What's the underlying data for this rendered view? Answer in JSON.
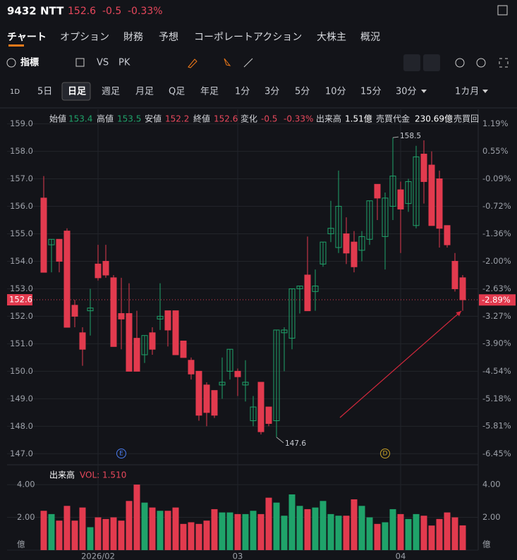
{
  "header": {
    "symbol": "9432 NTT",
    "price": "152.6",
    "change": "-0.5",
    "change_pct": "-0.33%"
  },
  "tabs": [
    "チャート",
    "オプション",
    "財務",
    "予想",
    "コーポレートアクション",
    "大株主",
    "概況"
  ],
  "toolbar": [
    "指標",
    "VS",
    "PK"
  ],
  "timeframes": [
    "1D",
    "5日",
    "日足",
    "週足",
    "月足",
    "Q足",
    "年足",
    "1分",
    "3分",
    "5分",
    "10分",
    "15分",
    "30分",
    "1カ月"
  ],
  "ohlc_info": [
    {
      "label": "始値",
      "value": "153.4"
    },
    {
      "label": "高値",
      "value": "153.5"
    },
    {
      "label": "安値",
      "value": "152.2"
    },
    {
      "label": "終値",
      "value": "152.6"
    },
    {
      "label": "変化",
      "value": "-0.5"
    },
    {
      "label": "",
      "value": "-0.33%"
    },
    {
      "label": "出来高",
      "value": "1.51億"
    },
    {
      "label": "売買代金",
      "value": "230.69億"
    },
    {
      "label": "売買回",
      "value": ""
    }
  ],
  "chart_data": [
    {
      "type": "candlestick",
      "up_color": "#1fa36a",
      "down_color": "#e23a4e",
      "grid": true,
      "categories": [
        null,
        null,
        null,
        null,
        null,
        null,
        null,
        "2026/02",
        null,
        null,
        null,
        null,
        null,
        null,
        null,
        null,
        null,
        null,
        null,
        null,
        null,
        null,
        null,
        null,
        null,
        "03",
        null,
        null,
        null,
        null,
        null,
        null,
        null,
        null,
        null,
        null,
        null,
        null,
        null,
        null,
        null,
        null,
        null,
        null,
        null,
        null,
        "04",
        null,
        null,
        null,
        null,
        null,
        null,
        null,
        null
      ],
      "open": [
        156.3,
        154.6,
        154.8,
        155.1,
        152.4,
        151.4,
        152.2,
        153.9,
        154.0,
        153.4,
        152.1,
        152.1,
        151.2,
        150.6,
        151.4,
        151.9,
        152.2,
        152.2,
        151.1,
        150.4,
        150.0,
        149.5,
        149.3,
        149.5,
        150.0,
        150.0,
        149.5,
        148.2,
        149.6,
        148.7,
        148.2,
        151.4,
        151.2,
        153.0,
        153.5,
        152.9,
        153.9,
        155.0,
        154.5,
        155.0,
        154.7,
        154.4,
        154.8,
        156.8,
        154.9,
        156.0,
        156.6,
        156.1,
        155.3,
        157.9,
        157.5,
        157.0,
        155.3,
        154.0,
        153.4
      ],
      "high": [
        157.1,
        154.8,
        154.8,
        155.2,
        152.6,
        151.6,
        153.0,
        154.6,
        154.6,
        153.5,
        153.4,
        153.2,
        152.2,
        151.3,
        151.6,
        153.2,
        152.2,
        152.2,
        151.1,
        150.5,
        150.0,
        149.6,
        149.3,
        150.5,
        150.8,
        150.1,
        150.4,
        149.1,
        149.6,
        148.7,
        151.5,
        151.6,
        153.0,
        153.1,
        154.9,
        153.7,
        154.7,
        156.2,
        157.3,
        155.6,
        155.1,
        155.1,
        156.2,
        156.8,
        156.5,
        158.5,
        156.9,
        157.0,
        158.2,
        158.4,
        158.0,
        157.3,
        155.3,
        154.3,
        153.5
      ],
      "low": [
        153.6,
        153.6,
        153.6,
        151.6,
        151.6,
        150.2,
        151.3,
        153.3,
        153.4,
        150.9,
        150.8,
        150.0,
        150.0,
        150.3,
        150.6,
        151.5,
        150.9,
        150.6,
        150.5,
        149.7,
        148.2,
        148.0,
        148.3,
        149.0,
        149.7,
        149.1,
        148.9,
        148.0,
        147.7,
        148.0,
        147.6,
        150.0,
        150.8,
        152.1,
        152.2,
        152.2,
        153.8,
        154.7,
        154.3,
        153.9,
        153.6,
        154.0,
        154.6,
        155.5,
        153.7,
        155.5,
        154.3,
        155.8,
        155.2,
        156.1,
        155.3,
        154.5,
        154.5,
        152.9,
        152.2
      ],
      "close": [
        153.6,
        154.8,
        154.0,
        151.6,
        152.0,
        150.8,
        152.3,
        153.4,
        153.5,
        150.9,
        151.9,
        150.0,
        150.0,
        151.3,
        150.8,
        152.0,
        151.5,
        150.6,
        150.5,
        149.9,
        148.4,
        148.5,
        148.4,
        149.6,
        150.8,
        149.8,
        149.6,
        148.7,
        147.8,
        148.1,
        151.5,
        151.5,
        153.0,
        153.1,
        152.2,
        153.1,
        154.7,
        155.2,
        156.0,
        154.3,
        153.8,
        154.9,
        156.2,
        156.3,
        156.3,
        157.1,
        155.9,
        156.9,
        157.8,
        156.9,
        155.3,
        155.2,
        154.6,
        153.0,
        152.6
      ],
      "ylim": [
        146.7,
        159.4
      ],
      "yticks": [
        {
          "value": 147,
          "label": "147.0"
        },
        {
          "value": 148,
          "label": "148.0"
        },
        {
          "value": 149,
          "label": "149.0"
        },
        {
          "value": 150,
          "label": "150.0"
        },
        {
          "value": 151,
          "label": "151.0"
        },
        {
          "value": 152,
          "label": "152.0"
        },
        {
          "value": 153,
          "label": "153.0"
        },
        {
          "value": 154,
          "label": "154.0"
        },
        {
          "value": 155,
          "label": "155.0"
        },
        {
          "value": 156,
          "label": "156.0"
        },
        {
          "value": 157,
          "label": "157.0"
        },
        {
          "value": 158,
          "label": "158.0"
        },
        {
          "value": 159,
          "label": "159.0"
        }
      ],
      "y2lim": [
        -6.64,
        1.44
      ],
      "y2ticks": [
        {
          "value": -6.45,
          "label": "-6.45%"
        },
        {
          "value": -5.81,
          "label": "-5.81%"
        },
        {
          "value": -5.18,
          "label": "-5.18%"
        },
        {
          "value": -4.54,
          "label": "-4.54%"
        },
        {
          "value": -3.9,
          "label": "-3.90%"
        },
        {
          "value": -3.27,
          "label": "-3.27%"
        },
        {
          "value": -2.63,
          "label": "-2.63%"
        },
        {
          "value": -2.0,
          "label": "-2.00%"
        },
        {
          "value": -1.36,
          "label": "-1.36%"
        },
        {
          "value": -0.72,
          "label": "-0.72%"
        },
        {
          "value": -0.09,
          "label": "-0.09%"
        },
        {
          "value": 0.55,
          "label": "0.55%"
        },
        {
          "value": 1.19,
          "label": "1.19%"
        }
      ],
      "last_price": 152.6,
      "last_change_pct": {
        "value": -2.89,
        "label": "-2.89%"
      },
      "max_label": 158.5,
      "min_label": 147.6,
      "events": [
        "E",
        "D"
      ]
    },
    {
      "type": "bar",
      "title": "出来高",
      "legend": "VOL: 1.510",
      "values": [
        2.4,
        2.2,
        1.8,
        2.7,
        1.8,
        2.6,
        1.4,
        2.0,
        1.9,
        2.0,
        1.8,
        3.0,
        4.0,
        2.9,
        2.6,
        2.4,
        2.4,
        2.6,
        1.6,
        1.7,
        1.6,
        1.8,
        2.5,
        2.3,
        2.3,
        2.2,
        2.2,
        2.4,
        2.2,
        3.2,
        2.9,
        2.1,
        3.4,
        2.7,
        2.5,
        2.6,
        3.0,
        2.2,
        2.1,
        2.1,
        3.1,
        2.7,
        2.0,
        1.6,
        1.7,
        2.5,
        2.2,
        1.9,
        2.2,
        2.1,
        1.5,
        1.9,
        2.3,
        2.0,
        1.51
      ],
      "ylim": [
        0,
        4.95
      ],
      "yticks": [
        {
          "value": 0,
          "label": "億"
        },
        {
          "value": 2,
          "label": "2.00"
        },
        {
          "value": 4,
          "label": "4.00"
        }
      ]
    }
  ]
}
